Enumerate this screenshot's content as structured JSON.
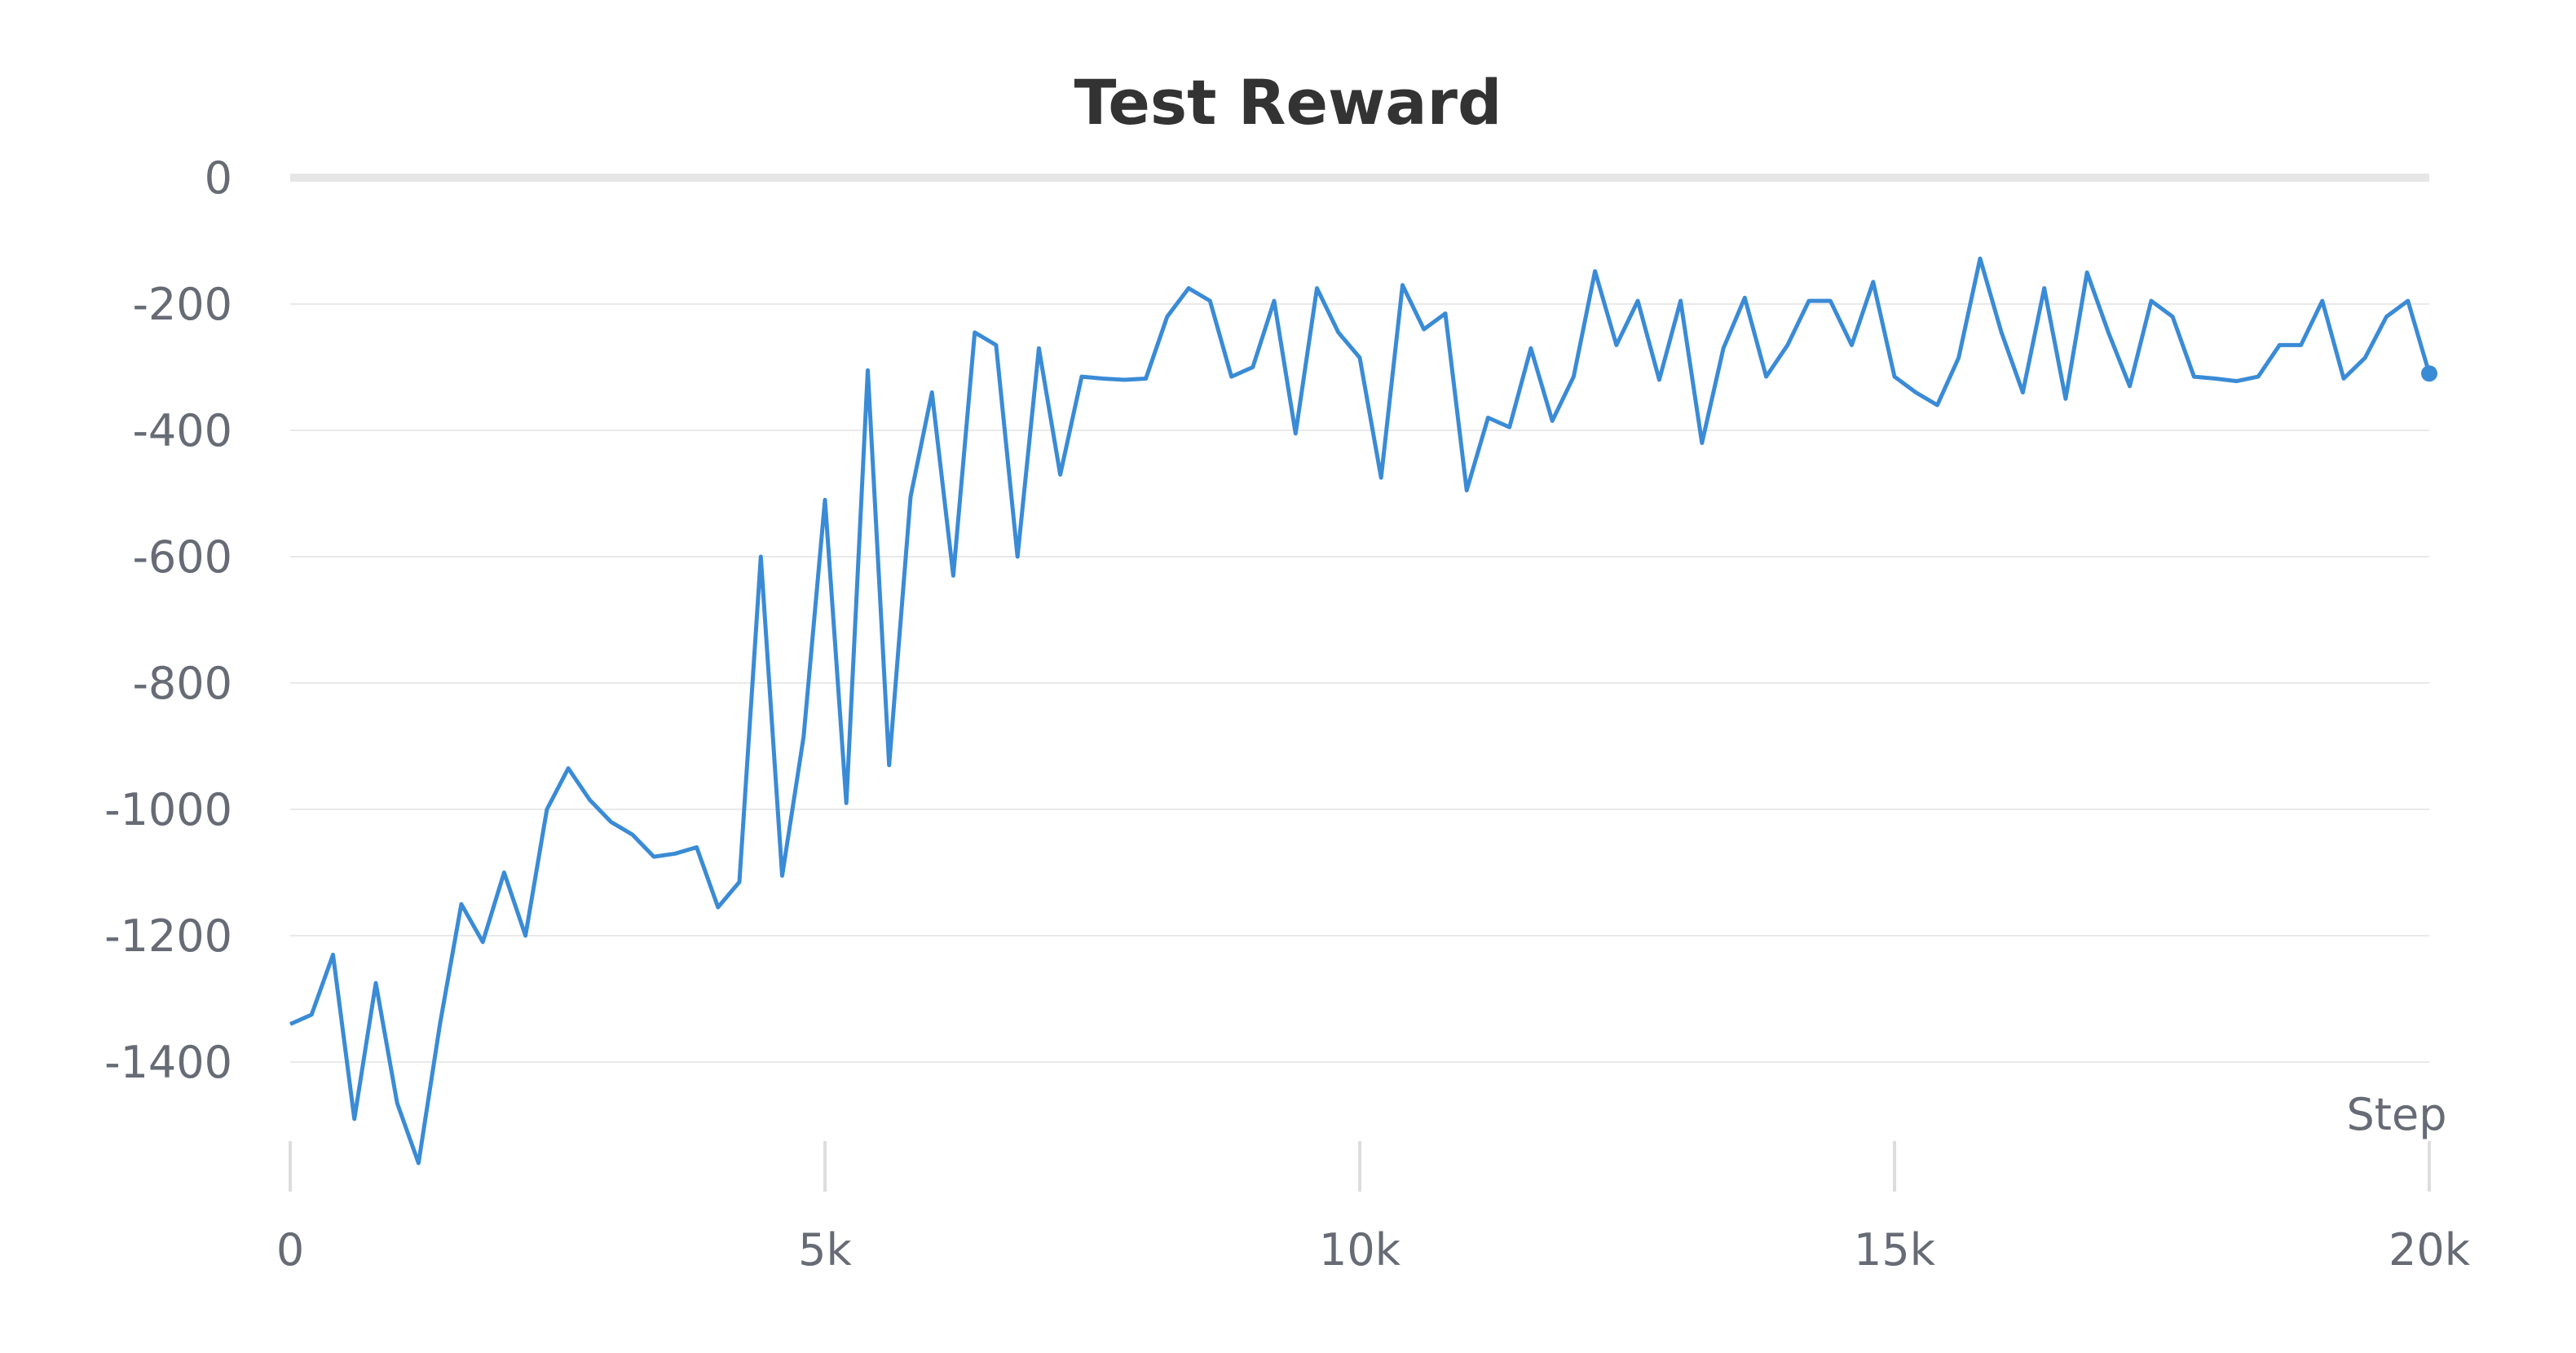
{
  "chart_data": {
    "type": "line",
    "title": "Test Reward",
    "xlabel": "Step",
    "ylabel": "",
    "xlim": [
      0,
      20000
    ],
    "ylim": [
      -1550,
      0
    ],
    "x_ticks": [
      0,
      5000,
      10000,
      15000,
      20000
    ],
    "x_tick_labels": [
      "0",
      "5k",
      "10k",
      "15k",
      "20k"
    ],
    "y_ticks": [
      0,
      -200,
      -400,
      -600,
      -800,
      -1000,
      -1200,
      -1400
    ],
    "y_tick_labels": [
      "0",
      "-200",
      "-400",
      "-600",
      "-800",
      "-1000",
      "-1200",
      "-1400"
    ],
    "grid": true,
    "line_color": "#3a8bd6",
    "series": [
      {
        "x": [
          0,
          200,
          400,
          600,
          800,
          1000,
          1200,
          1400,
          1600,
          1800,
          2000,
          2200,
          2400,
          2600,
          2800,
          3000,
          3200,
          3400,
          3600,
          3800,
          4000,
          4200,
          4400,
          4600,
          4800,
          5000,
          5200,
          5400,
          5600,
          5800,
          6000,
          6200,
          6400,
          6600,
          6800,
          7000,
          7200,
          7400,
          7600,
          7800,
          8000,
          8200,
          8400,
          8600,
          8800,
          9000,
          9200,
          9400,
          9600,
          9800,
          10000,
          10200,
          10400,
          10600,
          10800,
          11000,
          11200,
          11400,
          11600,
          11800,
          12000,
          12200,
          12400,
          12600,
          12800,
          13000,
          13200,
          13400,
          13600,
          13800,
          14000,
          14200,
          14400,
          14600,
          14800,
          15000,
          15200,
          15400,
          15600,
          15800,
          16000,
          16200,
          16400,
          16600,
          16800,
          17000,
          17200,
          17400,
          17600,
          17800,
          18000,
          18200,
          18400,
          18600,
          18800,
          19000,
          19200,
          19400,
          19600,
          19800,
          20000
        ],
        "values": [
          -1340,
          -1325,
          -1230,
          -1490,
          -1275,
          -1465,
          -1560,
          -1340,
          -1150,
          -1210,
          -1100,
          -1200,
          -1000,
          -935,
          -985,
          -1020,
          -1040,
          -1075,
          -1070,
          -1060,
          -1155,
          -1115,
          -600,
          -1105,
          -885,
          -510,
          -990,
          -305,
          -930,
          -505,
          -340,
          -630,
          -245,
          -265,
          -600,
          -270,
          -470,
          -315,
          -318,
          -320,
          -318,
          -220,
          -175,
          -195,
          -315,
          -300,
          -195,
          -405,
          -175,
          -245,
          -285,
          -475,
          -170,
          -240,
          -215,
          -495,
          -380,
          -395,
          -270,
          -385,
          -315,
          -148,
          -265,
          -195,
          -320,
          -195,
          -420,
          -270,
          -190,
          -315,
          -265,
          -195,
          -195,
          -265,
          -165,
          -315,
          -340,
          -360,
          -285,
          -128,
          -245,
          -340,
          -175,
          -350,
          -150,
          -245,
          -330,
          -195,
          -220,
          -315,
          -318,
          -322,
          -315,
          -265,
          -265,
          -195,
          -318,
          -285,
          -220,
          -195,
          -310
        ]
      }
    ]
  }
}
